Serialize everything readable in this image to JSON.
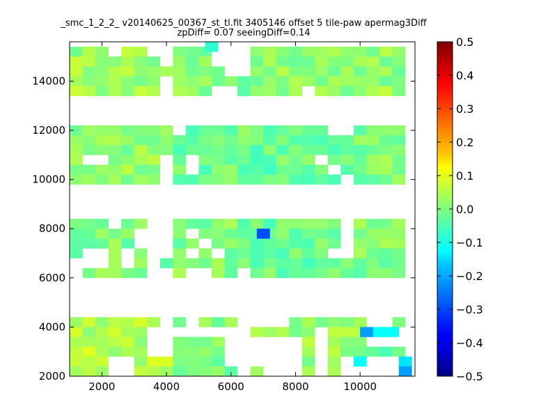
{
  "chart_data": {
    "type": "heatmap",
    "title_line1": "_smc_1_2_2_ v20140625_00367_st_tl.fit 3405146 offset 5 tile-paw apermag3Diff",
    "title_line2": "zpDiff= 0.07 seeingDiff=0.14",
    "xlabel": "",
    "ylabel": "",
    "xlim": [
      1000,
      11700
    ],
    "ylim": [
      2000,
      15600
    ],
    "x_ticks": [
      2000,
      4000,
      6000,
      8000,
      10000
    ],
    "y_ticks": [
      2000,
      4000,
      6000,
      8000,
      10000,
      12000,
      14000
    ],
    "cell_size": 400,
    "colorbar": {
      "min": -0.5,
      "max": 0.5,
      "ticks": [
        0.5,
        0.4,
        0.3,
        0.2,
        0.1,
        0.0,
        -0.1,
        -0.2,
        -0.3,
        -0.4,
        -0.5
      ],
      "tick_labels": [
        "0.5",
        "0.4",
        "0.3",
        "0.2",
        "0.1",
        "0.0",
        "−0.1",
        "−0.2",
        "−0.3",
        "−0.4",
        "−0.5"
      ],
      "colormap": "jet"
    },
    "blocks": [
      {
        "x0": 1000,
        "y0": 2000,
        "cols": 8,
        "rows": 6,
        "rows_top_down": [
          "11111110",
          "00000000",
          "00000000",
          "00000000",
          "00000000",
          "00000000"
        ],
        "base": 0.05
      },
      {
        "x0": 1000,
        "y0": 2000,
        "cols": 8,
        "rows": 6,
        "rows_top_down": [
          "00000000",
          "11111100",
          "11111100",
          "11111100",
          "11100111",
          "11100111"
        ],
        "base": 0.05
      },
      {
        "x0": 4200,
        "y0": 2000,
        "cols": 7,
        "rows": 6,
        "rows_top_down": [
          "1011100",
          "0000000",
          "1111000",
          "1111000",
          "1111000",
          "1111101"
        ],
        "base": 0.0
      },
      {
        "x0": 6600,
        "y0": 2000,
        "cols": 9,
        "rows": 6,
        "rows_top_down": [
          "000111111",
          "111110111",
          "000010111",
          "000010111",
          "000010100",
          "000010100"
        ],
        "base": 0.02
      },
      {
        "x0": 9800,
        "y0": 2000,
        "cols": 9,
        "rows": 6,
        "rows_top_down": [
          "000111100",
          "000000111",
          "000000111",
          "011111111",
          "000000011",
          "000000011"
        ],
        "base": -0.02
      },
      {
        "x0": 1000,
        "y0": 6000,
        "cols": 9,
        "rows": 6,
        "rows_top_down": [
          "111011000",
          "111110000",
          "111110000",
          "100101000",
          "000101011",
          "011111000"
        ],
        "base": 0.0
      },
      {
        "x0": 4200,
        "y0": 6000,
        "cols": 8,
        "rows": 6,
        "rows_top_down": [
          "11111111",
          "10111111",
          "11011111",
          "10101110",
          "11111100",
          "10011000"
        ],
        "base": 0.0
      },
      {
        "x0": 6600,
        "y0": 6000,
        "cols": 9,
        "rows": 6,
        "rows_top_down": [
          "111111100",
          "101111100",
          "111111100",
          "111111000",
          "111111111",
          "111111111"
        ],
        "base": -0.02
      },
      {
        "x0": 9800,
        "y0": 6000,
        "cols": 9,
        "rows": 6,
        "rows_top_down": [
          "111111111",
          "111111111",
          "111111111",
          "111111110",
          "111111011",
          "111111000"
        ],
        "base": 0.0
      },
      {
        "x0": 1000,
        "y0": 9800,
        "cols": 8,
        "rows": 6,
        "rows_top_down": [
          "11111111",
          "11111111",
          "11111111",
          "10011110",
          "11111110",
          "11111110"
        ],
        "base": 0.02
      },
      {
        "x0": 4200,
        "y0": 9800,
        "cols": 8,
        "rows": 6,
        "rows_top_down": [
          "01111111",
          "11111111",
          "11111111",
          "10111111",
          "10111111",
          "11111111"
        ],
        "base": -0.02
      },
      {
        "x0": 6600,
        "y0": 9800,
        "cols": 8,
        "rows": 6,
        "rows_top_down": [
          "01111100",
          "01111111",
          "01111111",
          "11111011",
          "01111101",
          "01111110"
        ],
        "base": -0.02
      },
      {
        "x0": 9800,
        "y0": 9800,
        "cols": 9,
        "rows": 6,
        "rows_top_down": [
          "111111111",
          "111111111",
          "111111111",
          "111111111",
          "111111111",
          "111111111"
        ],
        "base": 0.0
      },
      {
        "x0": 1000,
        "y0": 13400,
        "cols": 9,
        "rows": 6,
        "rows_top_down": [
          "100010000",
          "111011000",
          "111111100",
          "111111110",
          "111111100",
          "111111100"
        ],
        "base": 0.03
      },
      {
        "x0": 4200,
        "y0": 13400,
        "cols": 8,
        "rows": 6,
        "rows_top_down": [
          "11111101",
          "11100010",
          "11100000",
          "11110011",
          "11111111",
          "11100111"
        ],
        "base": 0.0
      },
      {
        "x0": 6600,
        "y0": 13400,
        "cols": 9,
        "rows": 6,
        "rows_top_down": [
          "011111111",
          "111111111",
          "111111111",
          "011111111",
          "001111111",
          "001101110"
        ],
        "base": 0.02
      },
      {
        "x0": 9800,
        "y0": 13400,
        "cols": 9,
        "rows": 6,
        "rows_top_down": [
          "001111000",
          "111111111",
          "111111111",
          "111101111",
          "111111111",
          "111111111"
        ],
        "base": 0.02
      }
    ],
    "special_cells": [
      {
        "x": 6800,
        "y": 7600,
        "value": -0.3
      },
      {
        "x": 10000,
        "y": 3600,
        "value": -0.22
      },
      {
        "x": 10400,
        "y": 3600,
        "value": -0.12
      },
      {
        "x": 10800,
        "y": 3600,
        "value": -0.12
      },
      {
        "x": 11200,
        "y": 2400,
        "value": -0.15
      },
      {
        "x": 11200,
        "y": 2000,
        "value": -0.22
      },
      {
        "x": 9800,
        "y": 2400,
        "value": -0.12
      },
      {
        "x": 5200,
        "y": 15200,
        "value": -0.08
      }
    ]
  }
}
